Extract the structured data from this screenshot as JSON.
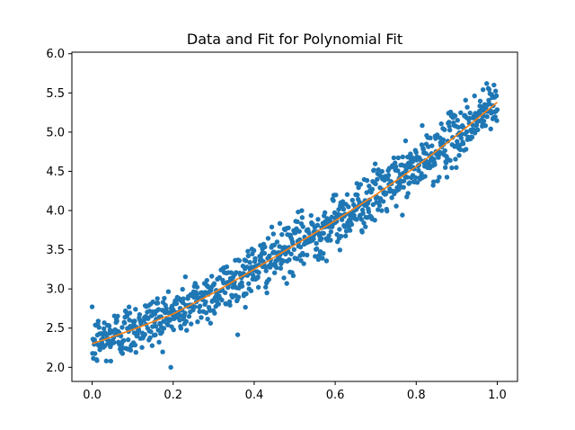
{
  "chart_data": {
    "type": "scatter",
    "title": "Data and Fit for Polynomial Fit",
    "xlabel": "",
    "ylabel": "",
    "xlim": [
      -0.05,
      1.05
    ],
    "ylim": [
      1.82,
      6.02
    ],
    "x_ticks": [
      0.0,
      0.2,
      0.4,
      0.6,
      0.8,
      1.0
    ],
    "x_tick_labels": [
      "0.0",
      "0.2",
      "0.4",
      "0.6",
      "0.8",
      "1.0"
    ],
    "y_ticks": [
      2.0,
      2.5,
      3.0,
      3.5,
      4.0,
      4.5,
      5.0,
      5.5,
      6.0
    ],
    "y_tick_labels": [
      "2.0",
      "2.5",
      "3.0",
      "3.5",
      "4.0",
      "4.5",
      "5.0",
      "5.5",
      "6.0"
    ],
    "grid": false,
    "colors": {
      "points": "#1f77b4",
      "fit": "#ff7f0e"
    },
    "series": [
      {
        "kind": "scatter",
        "n_points": 1000,
        "x": [
          0.0,
          0.1,
          0.2,
          0.3,
          0.4,
          0.5,
          0.6,
          0.7,
          0.8,
          0.9,
          1.0
        ],
        "y": [
          2.3,
          2.5,
          2.68,
          2.95,
          3.25,
          3.55,
          3.85,
          4.2,
          4.55,
          4.95,
          5.4
        ],
        "noise_sd": 0.17,
        "y_min": 2.0,
        "y_max": 5.82
      },
      {
        "kind": "line",
        "x": [
          0.0,
          0.1,
          0.2,
          0.3,
          0.4,
          0.5,
          0.6,
          0.7,
          0.8,
          0.9,
          1.0
        ],
        "y": [
          2.3,
          2.48,
          2.68,
          2.95,
          3.25,
          3.56,
          3.87,
          4.2,
          4.56,
          4.96,
          5.38
        ]
      }
    ]
  }
}
